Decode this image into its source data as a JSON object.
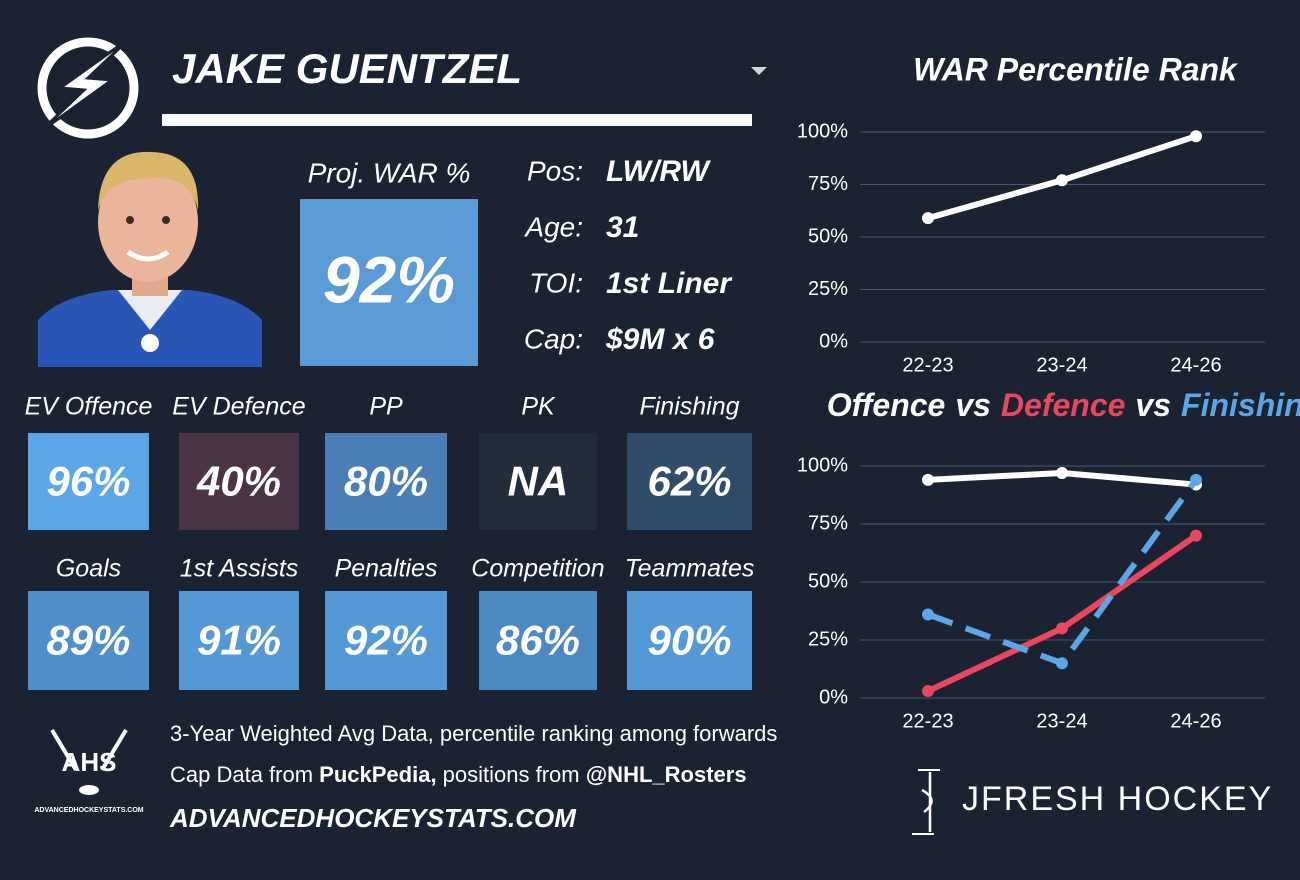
{
  "header": {
    "name": "JAKE GUENTZEL"
  },
  "proj_war": {
    "label": "Proj. WAR %",
    "value": "92%",
    "color": "#5b9bd5"
  },
  "info": [
    {
      "label": "Pos:",
      "value": "LW/RW"
    },
    {
      "label": "Age:",
      "value": "31"
    },
    {
      "label": "TOI:",
      "value": "1st Liner"
    },
    {
      "label": "Cap:",
      "value": "$9M x 6"
    }
  ],
  "tiles": [
    {
      "label": "EV Offence",
      "value": "96%",
      "color": "#5aa6e6"
    },
    {
      "label": "EV Defence",
      "value": "40%",
      "color": "#4a3446"
    },
    {
      "label": "PP",
      "value": "80%",
      "color": "#4a7fb5"
    },
    {
      "label": "PK",
      "value": "NA",
      "color": "#222c3a"
    },
    {
      "label": "Finishing",
      "value": "62%",
      "color": "#2f4d6a"
    },
    {
      "label": "Goals",
      "value": "89%",
      "color": "#4f8fcc"
    },
    {
      "label": "1st Assists",
      "value": "91%",
      "color": "#5499d6"
    },
    {
      "label": "Penalties",
      "value": "92%",
      "color": "#5499d6"
    },
    {
      "label": "Competition",
      "value": "86%",
      "color": "#4c89c3"
    },
    {
      "label": "Teammates",
      "value": "90%",
      "color": "#5499d6"
    }
  ],
  "footer": {
    "line1": "3-Year Weighted Avg Data, percentile ranking among forwards",
    "line2": [
      "Cap Data from ",
      "PuckPedia,",
      " positions from ",
      "@NHL_Rosters"
    ],
    "url": "ADVANCEDHOCKEYSTATS.COM",
    "logo": "AHS",
    "logo_caption": "ADVANCEDHOCKEYSTATS.COM",
    "brand": "JFRESH HOCKEY"
  },
  "chart_data": [
    {
      "type": "line",
      "title": "WAR Percentile Rank",
      "categories": [
        "22-23",
        "23-24",
        "24-26"
      ],
      "series": [
        {
          "color": "#ffffff",
          "values": [
            59,
            77,
            98
          ]
        }
      ],
      "ylim": [
        0,
        100
      ],
      "yticks": [
        {
          "value": 0,
          "label": "0%"
        },
        {
          "value": 25,
          "label": "25%"
        },
        {
          "value": 50,
          "label": "50%"
        },
        {
          "value": 75,
          "label": "75%"
        },
        {
          "value": 100,
          "label": "100%"
        }
      ],
      "grid": true
    },
    {
      "type": "line",
      "title_joiner": "vs",
      "categories": [
        "22-23",
        "23-24",
        "24-26"
      ],
      "series": [
        {
          "name": "Offence",
          "color": "#ffffff",
          "values": [
            94,
            97,
            92
          ]
        },
        {
          "name": "Defence",
          "color": "#e8475f",
          "values": [
            3,
            30,
            70
          ]
        },
        {
          "name": "Finishing",
          "color": "#5aa6e6",
          "values": [
            36,
            15,
            94
          ],
          "dashed": true
        }
      ],
      "ylim": [
        0,
        100
      ],
      "yticks": [
        {
          "value": 0,
          "label": "0%"
        },
        {
          "value": 25,
          "label": "25%"
        },
        {
          "value": 50,
          "label": "50%"
        },
        {
          "value": 75,
          "label": "75%"
        },
        {
          "value": 100,
          "label": "100%"
        }
      ],
      "grid": true
    }
  ]
}
